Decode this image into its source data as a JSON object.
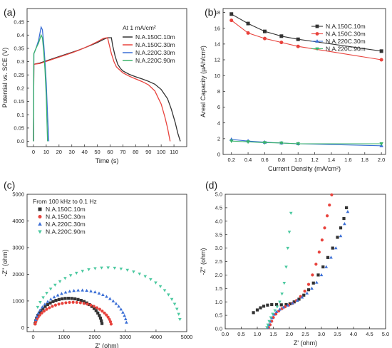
{
  "chart_data": [
    {
      "panel": "(a)",
      "type": "line",
      "xlabel": "Time (s)",
      "ylabel": "Potential vs. SCE (V)",
      "xlim": [
        -5,
        120
      ],
      "ylim": [
        -0.02,
        0.5
      ],
      "xticks": [
        0,
        10,
        20,
        30,
        40,
        50,
        60,
        70,
        80,
        90,
        100,
        110
      ],
      "yticks": [
        0.0,
        0.05,
        0.1,
        0.15,
        0.2,
        0.25,
        0.3,
        0.35,
        0.4,
        0.45
      ],
      "legend_title": "At 1 mA/cm²",
      "legend_position": "top-right",
      "series": [
        {
          "name": "N.A.150C.10m",
          "color": "#333333",
          "x": [
            0,
            0.3,
            5,
            10,
            15,
            20,
            25,
            30,
            35,
            40,
            45,
            50,
            55,
            58,
            61,
            62,
            64,
            66,
            68,
            70,
            75,
            80,
            85,
            90,
            95,
            100,
            105,
            108,
            111,
            113,
            115
          ],
          "y": [
            0,
            0.29,
            0.295,
            0.303,
            0.311,
            0.319,
            0.327,
            0.335,
            0.343,
            0.352,
            0.362,
            0.372,
            0.384,
            0.39,
            0.39,
            0.36,
            0.32,
            0.29,
            0.275,
            0.265,
            0.252,
            0.243,
            0.235,
            0.226,
            0.215,
            0.195,
            0.16,
            0.12,
            0.07,
            0.03,
            0.0
          ]
        },
        {
          "name": "N.A.150C.30m",
          "color": "#e8423c",
          "x": [
            0,
            0.3,
            5,
            10,
            15,
            20,
            25,
            30,
            35,
            40,
            45,
            50,
            55,
            58,
            59,
            61,
            63,
            65,
            70,
            75,
            80,
            85,
            90,
            95,
            100,
            103,
            105,
            107
          ],
          "y": [
            0,
            0.29,
            0.293,
            0.301,
            0.309,
            0.317,
            0.325,
            0.333,
            0.342,
            0.352,
            0.363,
            0.375,
            0.388,
            0.39,
            0.37,
            0.33,
            0.3,
            0.28,
            0.258,
            0.245,
            0.235,
            0.225,
            0.213,
            0.19,
            0.14,
            0.09,
            0.05,
            0.0
          ]
        },
        {
          "name": "N.A.220C.30m",
          "color": "#3b6fd6",
          "x": [
            0,
            0.3,
            2,
            4,
            6,
            7,
            8,
            9,
            10,
            11,
            12
          ],
          "y": [
            0,
            0.33,
            0.35,
            0.38,
            0.43,
            0.42,
            0.37,
            0.3,
            0.22,
            0.1,
            0.0
          ]
        },
        {
          "name": "N.A.220C.90m",
          "color": "#3ab36a",
          "x": [
            0,
            0.3,
            2,
            4,
            6,
            7,
            8,
            9,
            10,
            11
          ],
          "y": [
            0,
            0.33,
            0.35,
            0.37,
            0.4,
            0.39,
            0.34,
            0.27,
            0.17,
            0.0
          ]
        }
      ]
    },
    {
      "panel": "(b)",
      "type": "line",
      "xlabel": "Current Density (mA/cm²)",
      "ylabel": "Areal Capacity (µAh/cm²)",
      "xlim": [
        0.1,
        2.05
      ],
      "ylim": [
        0,
        18.5
      ],
      "xticks": [
        0.2,
        0.4,
        0.6,
        0.8,
        1.0,
        1.2,
        1.4,
        1.6,
        1.8,
        2.0
      ],
      "yticks": [
        0,
        2,
        4,
        6,
        8,
        10,
        12,
        14,
        16,
        18
      ],
      "legend_position": "top-right",
      "x": [
        0.2,
        0.4,
        0.6,
        0.8,
        1.0,
        2.0
      ],
      "series": [
        {
          "name": "N.A.150C.10m",
          "color": "#333333",
          "marker": "square",
          "values": [
            17.8,
            16.6,
            15.6,
            15.0,
            14.6,
            13.1
          ]
        },
        {
          "name": "N.A.150C.30m",
          "color": "#e8423c",
          "marker": "circle",
          "values": [
            17.0,
            15.4,
            14.7,
            14.2,
            13.7,
            12.0
          ]
        },
        {
          "name": "N.A.220C.30m",
          "color": "#3b6fd6",
          "marker": "triangle-up",
          "values": [
            1.9,
            1.7,
            1.55,
            1.45,
            1.35,
            1.1
          ]
        },
        {
          "name": "N.A.220C.90m",
          "color": "#3ab36a",
          "marker": "triangle-down",
          "values": [
            1.7,
            1.6,
            1.5,
            1.45,
            1.35,
            1.35
          ]
        }
      ]
    },
    {
      "panel": "(c)",
      "type": "scatter",
      "xlabel": "Z' (ohm)",
      "ylabel": "-Z'' (ohm)",
      "xlim": [
        -200,
        5000
      ],
      "ylim": [
        -150,
        5000
      ],
      "xticks": [
        0,
        1000,
        2000,
        3000,
        4000,
        5000
      ],
      "yticks": [
        0,
        1000,
        2000,
        3000,
        4000,
        5000
      ],
      "legend_title": "From 100 kHz to 0.1 Hz",
      "legend_position": "top-left",
      "series": [
        {
          "name": "N.A.150C.10m",
          "color": "#333333",
          "marker": "square",
          "center": 1150,
          "radius": 1100,
          "height": 1100,
          "start_angle": 8,
          "end_angle": 172
        },
        {
          "name": "N.A.150C.30m",
          "color": "#e8423c",
          "marker": "circle",
          "center": 1300,
          "radius": 1250,
          "height": 950,
          "start_angle": 8,
          "end_angle": 172
        },
        {
          "name": "N.A.220C.30m",
          "color": "#3b6fd6",
          "marker": "triangle-up",
          "center": 1550,
          "radius": 1500,
          "height": 1400,
          "start_angle": 12,
          "end_angle": 172
        },
        {
          "name": "N.A.220C.90m",
          "color": "#4cc9a0",
          "marker": "triangle-down",
          "center": 2400,
          "radius": 2400,
          "height": 2250,
          "start_angle": 20,
          "end_angle": 172
        }
      ]
    },
    {
      "panel": "(d)",
      "type": "scatter",
      "xlabel": "Z' (ohm)",
      "ylabel": "-Z'' (ohm)",
      "xlim": [
        0,
        5.0
      ],
      "ylim": [
        0,
        5.0
      ],
      "xticks": [
        0.0,
        0.5,
        1.0,
        1.5,
        2.0,
        2.5,
        3.0,
        3.5,
        4.0,
        4.5,
        5.0
      ],
      "yticks": [
        0.0,
        0.5,
        1.0,
        1.5,
        2.0,
        2.5,
        3.0,
        3.5,
        4.0,
        4.5,
        5.0
      ],
      "series": [
        {
          "name": "N.A.150C.10m",
          "color": "#333333",
          "marker": "square",
          "x": [
            0.88,
            1.0,
            1.1,
            1.2,
            1.32,
            1.45,
            1.6,
            1.75,
            1.9,
            2.02,
            2.15,
            2.3,
            2.45,
            2.6,
            2.75,
            2.9,
            3.05,
            3.2,
            3.35,
            3.5,
            3.6,
            3.7,
            3.78
          ],
          "y": [
            0.6,
            0.7,
            0.78,
            0.84,
            0.88,
            0.9,
            0.9,
            0.89,
            0.9,
            0.93,
            1.0,
            1.1,
            1.25,
            1.45,
            1.7,
            2.0,
            2.3,
            2.65,
            3.0,
            3.4,
            3.75,
            4.1,
            4.5
          ]
        },
        {
          "name": "N.A.150C.30m",
          "color": "#e8423c",
          "marker": "circle",
          "x": [
            1.35,
            1.4,
            1.45,
            1.5,
            1.58,
            1.67,
            1.77,
            1.87,
            1.98,
            2.1,
            2.22,
            2.35,
            2.48,
            2.6,
            2.72,
            2.83,
            2.93,
            3.02,
            3.1,
            3.18,
            3.25,
            3.32
          ],
          "y": [
            0.05,
            0.15,
            0.28,
            0.42,
            0.55,
            0.66,
            0.75,
            0.82,
            0.88,
            0.95,
            1.05,
            1.2,
            1.4,
            1.65,
            2.0,
            2.4,
            2.85,
            3.3,
            3.75,
            4.2,
            4.6,
            4.98
          ]
        },
        {
          "name": "N.A.220C.30m",
          "color": "#3b6fd6",
          "marker": "triangle-up",
          "x": [
            1.32,
            1.36,
            1.4,
            1.45,
            1.52,
            1.6,
            1.7,
            1.82,
            1.95,
            2.1,
            2.25,
            2.4,
            2.55,
            2.7,
            2.85,
            3.0,
            3.15,
            3.3,
            3.45,
            3.6,
            3.72,
            3.82
          ],
          "y": [
            0.05,
            0.15,
            0.27,
            0.4,
            0.53,
            0.63,
            0.72,
            0.8,
            0.87,
            0.95,
            1.05,
            1.17,
            1.32,
            1.5,
            1.72,
            2.0,
            2.3,
            2.65,
            3.0,
            3.45,
            3.9,
            4.35
          ]
        },
        {
          "name": "N.A.220C.90m",
          "color": "#4cc9a0",
          "marker": "triangle-down",
          "x": [
            1.3,
            1.33,
            1.37,
            1.42,
            1.48,
            1.55,
            1.62,
            1.7,
            1.77,
            1.84,
            1.9,
            1.95,
            2.0,
            2.05
          ],
          "y": [
            0.05,
            0.15,
            0.28,
            0.42,
            0.55,
            0.68,
            0.82,
            1.0,
            1.3,
            1.7,
            2.3,
            3.0,
            3.6,
            4.3
          ]
        }
      ]
    }
  ]
}
